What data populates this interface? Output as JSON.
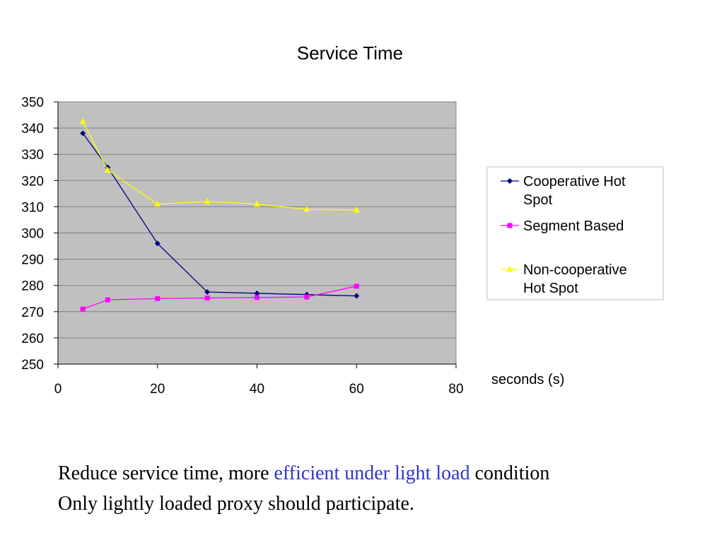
{
  "chart_data": {
    "type": "line",
    "title": "Service Time",
    "xlabel": "seconds (s)",
    "ylabel": "",
    "xlim": [
      0,
      80
    ],
    "ylim": [
      250,
      350
    ],
    "x_ticks": [
      "0",
      "20",
      "40",
      "60",
      "80"
    ],
    "y_ticks": [
      "250",
      "260",
      "270",
      "280",
      "290",
      "300",
      "310",
      "320",
      "330",
      "340",
      "350"
    ],
    "x_tick_values": [
      0,
      20,
      40,
      60,
      80
    ],
    "y_tick_values": [
      250,
      260,
      270,
      280,
      290,
      300,
      310,
      320,
      330,
      340,
      350
    ],
    "grid": "horizontal",
    "plot_background": "#c0c0c0",
    "legend_position": "right",
    "series": [
      {
        "name": "Cooperative Hot Spot",
        "legend_lines": [
          "Cooperative Hot",
          "Spot"
        ],
        "color": "#000080",
        "marker": "diamond",
        "x": [
          5,
          10,
          20,
          30,
          40,
          50,
          60
        ],
        "values": [
          338,
          325,
          296,
          277.5,
          277,
          276.5,
          276
        ]
      },
      {
        "name": "Segment Based",
        "legend_lines": [
          "Segment Based"
        ],
        "color": "#ff00ff",
        "marker": "square",
        "x": [
          5,
          10,
          20,
          30,
          40,
          50,
          60
        ],
        "values": [
          271,
          274.5,
          275,
          275.2,
          275.4,
          275.6,
          279.7
        ]
      },
      {
        "name": "Non-cooperative Hot Spot",
        "legend_lines": [
          "Non-cooperative",
          "Hot Spot"
        ],
        "color": "#ffff00",
        "marker": "triangle",
        "x": [
          5,
          10,
          20,
          30,
          40,
          50,
          60
        ],
        "values": [
          342.5,
          324,
          311,
          312,
          311,
          309,
          308.8
        ]
      }
    ]
  },
  "caption": {
    "line1_before": "Reduce service time, more ",
    "line1_highlight": "efficient under light load",
    "line1_after": " condition",
    "line2": "Only lightly loaded proxy should participate."
  }
}
